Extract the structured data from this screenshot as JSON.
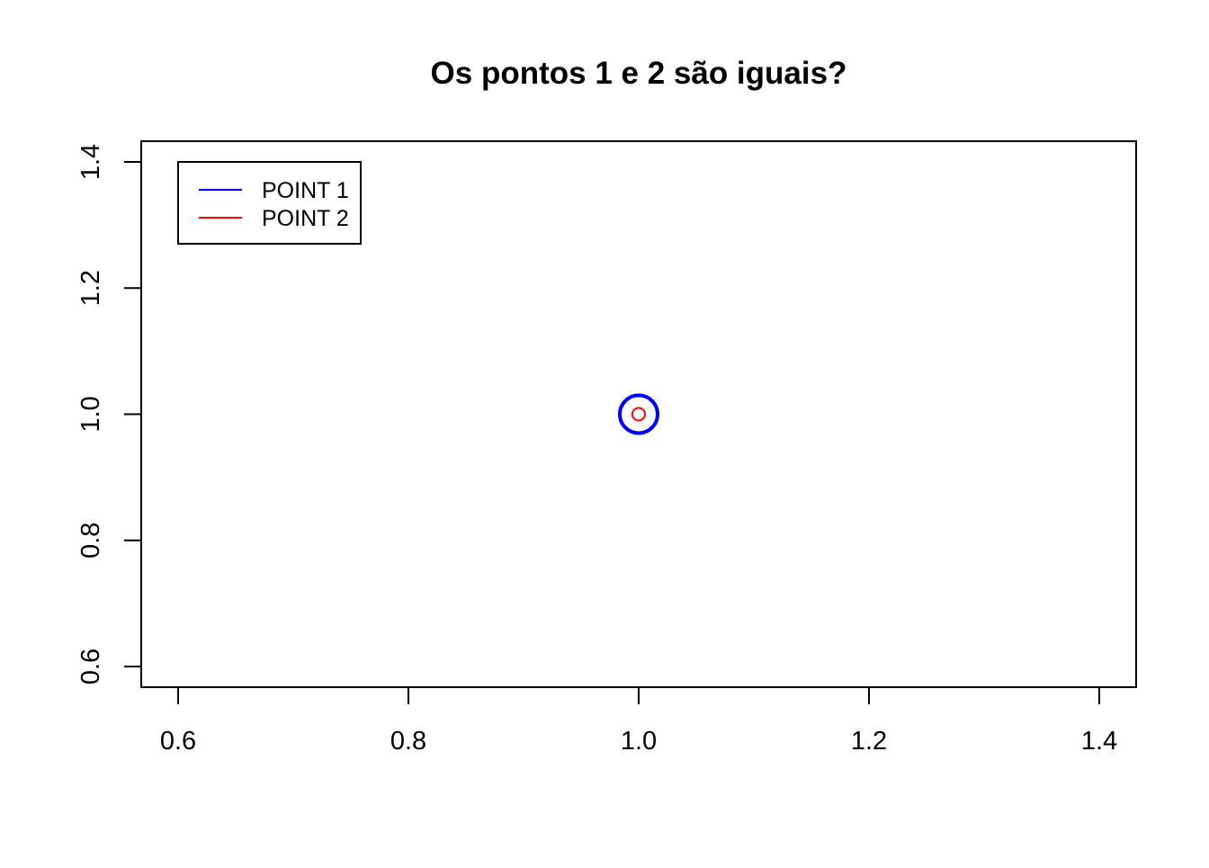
{
  "chart_data": {
    "type": "scatter",
    "title": "Os pontos 1 e 2 são iguais?",
    "xlabel": "",
    "ylabel": "",
    "xlim": [
      0.6,
      1.4
    ],
    "ylim": [
      0.6,
      1.4
    ],
    "x_ticks": [
      0.6,
      0.8,
      1.0,
      1.2,
      1.4
    ],
    "y_ticks": [
      0.6,
      0.8,
      1.0,
      1.2,
      1.4
    ],
    "x_tick_labels": [
      "0.6",
      "0.8",
      "1.0",
      "1.2",
      "1.4"
    ],
    "y_tick_labels": [
      "0.6",
      "0.8",
      "1.0",
      "1.2",
      "1.4"
    ],
    "grid": false,
    "legend_position": "top-left",
    "series": [
      {
        "name": "POINT 1",
        "color": "#0000ff",
        "marker": "circle-open",
        "marker_scale": "large",
        "points": [
          {
            "x": 1.0,
            "y": 1.0
          }
        ]
      },
      {
        "name": "POINT 2",
        "color": "#ff0000",
        "marker": "circle-open",
        "marker_scale": "small",
        "points": [
          {
            "x": 1.0,
            "y": 1.0
          }
        ]
      }
    ]
  }
}
